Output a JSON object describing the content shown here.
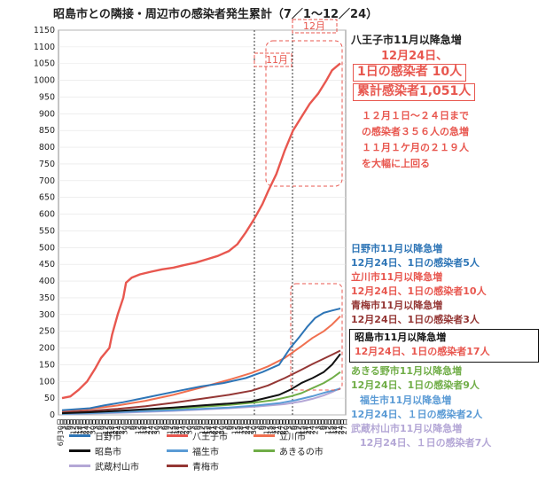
{
  "chart_data": {
    "type": "line",
    "title": "昭島市との隣接・周辺市の感染者発生累計（7／1～12／24）",
    "ylim": [
      0,
      1150
    ],
    "yticks": [
      0,
      50,
      100,
      150,
      200,
      250,
      300,
      350,
      400,
      450,
      500,
      550,
      600,
      650,
      700,
      750,
      800,
      850,
      900,
      950,
      1000,
      1050,
      1100,
      1150
    ],
    "x_tick_labels": [
      "6月30日",
      "3日",
      "6日",
      "9日",
      "12日",
      "15日",
      "18日",
      "21日",
      "24日",
      "27日",
      "30日",
      "3日",
      "6日",
      "9日",
      "12日",
      "15日",
      "18日",
      "21日",
      "24日",
      "27日",
      "30日",
      "3日",
      "6日",
      "9日",
      "12日",
      "15日",
      "18日",
      "21日",
      "24日",
      "27日",
      "30日",
      "3日",
      "6日",
      "9日",
      "12日",
      "15日",
      "18日",
      "21日",
      "24日",
      "27日",
      "30日",
      "3日",
      "6日",
      "9日",
      "12日",
      "15日",
      "18日",
      "21日",
      "24日",
      "27日",
      "30日",
      "3日",
      "6日",
      "9日",
      "12日",
      "15日",
      "18日",
      "21日",
      "24日",
      "27日",
      "30日",
      "3日",
      "6日",
      "9日",
      "12日",
      "15日",
      "18日",
      "21日",
      "24日",
      "27日",
      "30日",
      "3日",
      "6日",
      "9日",
      "12日",
      "15日",
      "18日",
      "21日",
      "24日",
      "27日",
      "3日",
      "6日",
      "9日",
      "12日",
      "15日",
      "18日",
      "21日",
      "24日",
      "27日"
    ],
    "period_labels": [
      "11月",
      "12月"
    ],
    "series": [
      {
        "name": "日野市",
        "color": "#2e75b6",
        "points": [
          [
            0,
            14
          ],
          [
            0.1,
            20
          ],
          [
            0.15,
            28
          ],
          [
            0.22,
            38
          ],
          [
            0.28,
            48
          ],
          [
            0.35,
            60
          ],
          [
            0.42,
            72
          ],
          [
            0.5,
            85
          ],
          [
            0.58,
            95
          ],
          [
            0.66,
            110
          ],
          [
            0.72,
            128
          ],
          [
            0.78,
            150
          ],
          [
            0.82,
            200
          ],
          [
            0.85,
            230
          ],
          [
            0.88,
            262
          ],
          [
            0.91,
            290
          ],
          [
            0.94,
            305
          ],
          [
            0.97,
            312
          ],
          [
            1.0,
            318
          ]
        ]
      },
      {
        "name": "八王子市",
        "color": "#e8574f",
        "points": [
          [
            0,
            50
          ],
          [
            0.03,
            55
          ],
          [
            0.06,
            75
          ],
          [
            0.09,
            100
          ],
          [
            0.12,
            140
          ],
          [
            0.14,
            170
          ],
          [
            0.17,
            200
          ],
          [
            0.18,
            240
          ],
          [
            0.2,
            300
          ],
          [
            0.22,
            350
          ],
          [
            0.23,
            395
          ],
          [
            0.25,
            410
          ],
          [
            0.28,
            420
          ],
          [
            0.32,
            428
          ],
          [
            0.36,
            435
          ],
          [
            0.4,
            440
          ],
          [
            0.44,
            448
          ],
          [
            0.48,
            455
          ],
          [
            0.52,
            465
          ],
          [
            0.56,
            475
          ],
          [
            0.6,
            490
          ],
          [
            0.63,
            510
          ],
          [
            0.66,
            545
          ],
          [
            0.69,
            585
          ],
          [
            0.72,
            630
          ],
          [
            0.74,
            668
          ],
          [
            0.77,
            720
          ],
          [
            0.8,
            790
          ],
          [
            0.83,
            850
          ],
          [
            0.86,
            890
          ],
          [
            0.89,
            930
          ],
          [
            0.92,
            960
          ],
          [
            0.95,
            1000
          ],
          [
            0.97,
            1030
          ],
          [
            1.0,
            1051
          ]
        ]
      },
      {
        "name": "立川市",
        "color": "#f07050",
        "points": [
          [
            0,
            12
          ],
          [
            0.1,
            18
          ],
          [
            0.2,
            28
          ],
          [
            0.3,
            42
          ],
          [
            0.4,
            60
          ],
          [
            0.5,
            82
          ],
          [
            0.6,
            105
          ],
          [
            0.68,
            125
          ],
          [
            0.74,
            145
          ],
          [
            0.8,
            170
          ],
          [
            0.86,
            205
          ],
          [
            0.9,
            230
          ],
          [
            0.94,
            250
          ],
          [
            0.97,
            270
          ],
          [
            1.0,
            295
          ]
        ]
      },
      {
        "name": "昭島市",
        "color": "#111111",
        "points": [
          [
            0,
            5
          ],
          [
            0.1,
            8
          ],
          [
            0.2,
            12
          ],
          [
            0.3,
            17
          ],
          [
            0.4,
            22
          ],
          [
            0.5,
            28
          ],
          [
            0.6,
            34
          ],
          [
            0.68,
            40
          ],
          [
            0.74,
            52
          ],
          [
            0.78,
            60
          ],
          [
            0.82,
            75
          ],
          [
            0.86,
            95
          ],
          [
            0.9,
            110
          ],
          [
            0.94,
            128
          ],
          [
            0.97,
            150
          ],
          [
            1.0,
            182
          ]
        ]
      },
      {
        "name": "福生市",
        "color": "#5b9bd5",
        "points": [
          [
            0,
            3
          ],
          [
            0.1,
            5
          ],
          [
            0.2,
            8
          ],
          [
            0.3,
            11
          ],
          [
            0.4,
            14
          ],
          [
            0.5,
            18
          ],
          [
            0.6,
            22
          ],
          [
            0.7,
            28
          ],
          [
            0.78,
            35
          ],
          [
            0.84,
            44
          ],
          [
            0.9,
            56
          ],
          [
            0.95,
            68
          ],
          [
            1.0,
            78
          ]
        ]
      },
      {
        "name": "あきるの市",
        "color": "#70ad47",
        "points": [
          [
            0,
            3
          ],
          [
            0.1,
            6
          ],
          [
            0.2,
            10
          ],
          [
            0.3,
            14
          ],
          [
            0.4,
            18
          ],
          [
            0.5,
            24
          ],
          [
            0.6,
            30
          ],
          [
            0.7,
            38
          ],
          [
            0.76,
            44
          ],
          [
            0.82,
            55
          ],
          [
            0.86,
            65
          ],
          [
            0.9,
            80
          ],
          [
            0.94,
            95
          ],
          [
            0.97,
            110
          ],
          [
            1.0,
            128
          ]
        ]
      },
      {
        "name": "武蔵村山市",
        "color": "#b4a7d6",
        "points": [
          [
            0,
            2
          ],
          [
            0.1,
            4
          ],
          [
            0.2,
            6
          ],
          [
            0.3,
            9
          ],
          [
            0.4,
            12
          ],
          [
            0.5,
            16
          ],
          [
            0.6,
            20
          ],
          [
            0.7,
            25
          ],
          [
            0.8,
            32
          ],
          [
            0.86,
            40
          ],
          [
            0.9,
            48
          ],
          [
            0.94,
            58
          ],
          [
            0.97,
            68
          ],
          [
            1.0,
            80
          ]
        ]
      },
      {
        "name": "青梅市",
        "color": "#943634",
        "points": [
          [
            0,
            8
          ],
          [
            0.1,
            12
          ],
          [
            0.2,
            18
          ],
          [
            0.3,
            26
          ],
          [
            0.4,
            36
          ],
          [
            0.5,
            48
          ],
          [
            0.6,
            60
          ],
          [
            0.68,
            72
          ],
          [
            0.74,
            88
          ],
          [
            0.8,
            110
          ],
          [
            0.86,
            135
          ],
          [
            0.9,
            152
          ],
          [
            0.94,
            168
          ],
          [
            0.97,
            180
          ],
          [
            1.0,
            192
          ]
        ]
      }
    ]
  },
  "legend": [
    {
      "name": "日野市",
      "color": "#2e75b6"
    },
    {
      "name": "八王子市",
      "color": "#e8574f"
    },
    {
      "name": "立川市",
      "color": "#f07050"
    },
    {
      "name": "昭島市",
      "color": "#111111"
    },
    {
      "name": "福生市",
      "color": "#5b9bd5"
    },
    {
      "name": "あきるの市",
      "color": "#70ad47"
    },
    {
      "name": "武蔵村山市",
      "color": "#b4a7d6"
    },
    {
      "name": "青梅市",
      "color": "#943634"
    }
  ],
  "annotations": {
    "hachioji": {
      "line1": "八王子市11月以降急増",
      "line2": "12月24日、",
      "line3": "1日の感染者 10人",
      "line4": "累計感染者1,051人",
      "line5": "１２月１日～２４日まで",
      "line6": "の感染者３５６人の急増",
      "line7": "１１月１ケ月の２１９人",
      "line8": "を大幅に上回る"
    },
    "hino": {
      "line1": "日野市11月以降急増",
      "line2": "12月24日、1日の感染者5人"
    },
    "tachikawa": {
      "line1": "立川市11月以降急増",
      "line2": "12月24日、1日の感染者10人"
    },
    "ome": {
      "line1": "青梅市11月以降急増",
      "line2": "12月24日、1日の感染者3人"
    },
    "akishima": {
      "line1": "昭島市11月以降急増",
      "line2": "12月24日、1日の感染者17人"
    },
    "akiruno": {
      "line1": "あきる野市11月以降急増",
      "line2": "12月24日、1日の感染者9人"
    },
    "fussa": {
      "line1": "福生市11月以降急増",
      "line2": "12月24日、１日の感染者2人"
    },
    "musashimurayama": {
      "line1": "武蔵村山市11月以降急増",
      "line2": "12月24日、１日の感染者7人"
    }
  }
}
